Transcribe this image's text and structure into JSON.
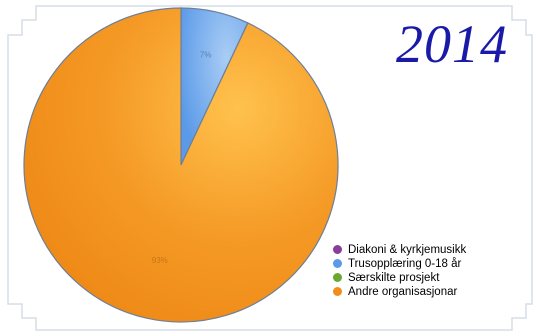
{
  "chart_data": {
    "type": "pie",
    "title": "2014",
    "categories": [
      "Diakoni & kyrkjemusikk",
      "Trusopplæring 0-18 år",
      "Særskilte prosjekt",
      "Andre organisasjonar"
    ],
    "values": [
      0,
      7,
      0,
      93
    ],
    "data_labels": [
      "",
      "7%",
      "",
      "93%"
    ],
    "legend": "bottom-right",
    "colors": {
      "Diakoni & kyrkjemusikk": "#8a3d9c",
      "Trusopplæring 0-18 år": "#5b9ae8",
      "Særskilte prosjekt": "#6aa82f",
      "Andre organisasjonar": "#f28c1c"
    }
  },
  "frame_color": "#d6dde8"
}
